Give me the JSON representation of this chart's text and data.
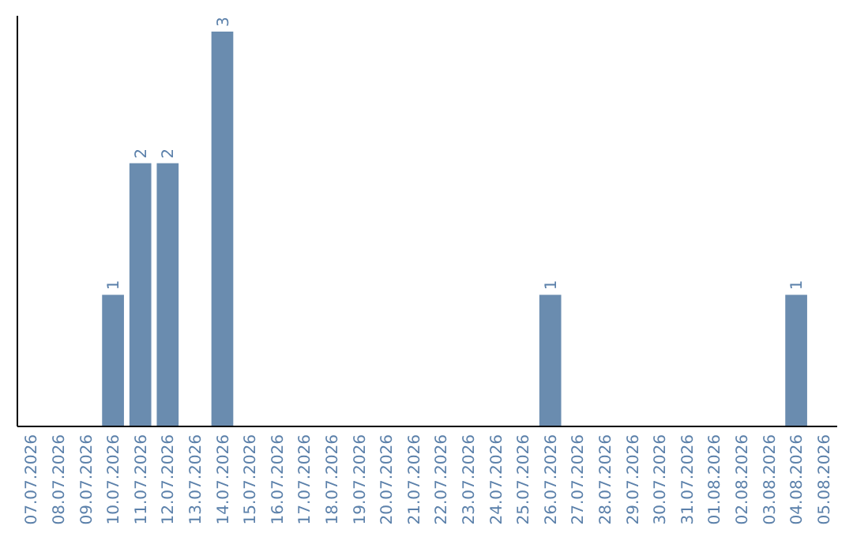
{
  "chart_data": {
    "type": "bar",
    "categories": [
      "07.07.2026",
      "08.07.2026",
      "09.07.2026",
      "10.07.2026",
      "11.07.2026",
      "12.07.2026",
      "13.07.2026",
      "14.07.2026",
      "15.07.2026",
      "16.07.2026",
      "17.07.2026",
      "18.07.2026",
      "19.07.2026",
      "20.07.2026",
      "21.07.2026",
      "22.07.2026",
      "23.07.2026",
      "24.07.2026",
      "25.07.2026",
      "26.07.2026",
      "27.07.2026",
      "28.07.2026",
      "29.07.2026",
      "30.07.2026",
      "31.07.2026",
      "01.08.2026",
      "02.08.2026",
      "03.08.2026",
      "04.08.2026",
      "05.08.2026"
    ],
    "values": [
      0,
      0,
      0,
      1,
      2,
      2,
      0,
      3,
      0,
      0,
      0,
      0,
      0,
      0,
      0,
      0,
      0,
      0,
      0,
      1,
      0,
      0,
      0,
      0,
      0,
      0,
      0,
      0,
      1,
      0
    ],
    "value_labels": [
      null,
      null,
      null,
      "1",
      "2",
      "2",
      null,
      "3",
      null,
      null,
      null,
      null,
      null,
      null,
      null,
      null,
      null,
      null,
      null,
      "1",
      null,
      null,
      null,
      null,
      null,
      null,
      null,
      null,
      "1",
      null
    ],
    "color": "#6a8caf",
    "tick_labels": "x"
  }
}
